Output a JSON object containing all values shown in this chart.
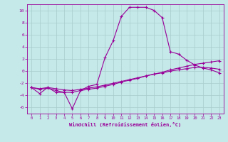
{
  "xlabel": "Windchill (Refroidissement éolien,°C)",
  "background_color": "#c5e8e8",
  "line_color": "#990099",
  "grid_color": "#a8cccc",
  "xlim": [
    -0.5,
    23.5
  ],
  "ylim": [
    -7,
    11
  ],
  "xticks": [
    0,
    1,
    2,
    3,
    4,
    5,
    6,
    7,
    8,
    9,
    10,
    11,
    12,
    13,
    14,
    15,
    16,
    17,
    18,
    19,
    20,
    21,
    22,
    23
  ],
  "yticks": [
    -6,
    -4,
    -2,
    0,
    2,
    4,
    6,
    8,
    10
  ],
  "line1_x": [
    0,
    1,
    2,
    3,
    4,
    5,
    6,
    7,
    8,
    9,
    10,
    11,
    12,
    13,
    14,
    15,
    16,
    17,
    18,
    19,
    20,
    21,
    22,
    23
  ],
  "line1_y": [
    -2.7,
    -3.7,
    -2.7,
    -3.5,
    -3.5,
    -6.2,
    -3.2,
    -2.5,
    -2.2,
    2.2,
    5.0,
    9.0,
    10.5,
    10.5,
    10.5,
    10.0,
    8.8,
    3.2,
    2.8,
    1.8,
    1.0,
    0.5,
    0.2,
    -0.3
  ],
  "line2_x": [
    0,
    1,
    2,
    3,
    4,
    5,
    6,
    7,
    8,
    9,
    10,
    11,
    12,
    13,
    14,
    15,
    16,
    17,
    18,
    19,
    20,
    21,
    22,
    23
  ],
  "line2_y": [
    -2.7,
    -2.9,
    -2.7,
    -2.9,
    -3.1,
    -3.2,
    -3.0,
    -2.8,
    -2.6,
    -2.3,
    -2.0,
    -1.7,
    -1.4,
    -1.1,
    -0.8,
    -0.5,
    -0.2,
    0.2,
    0.5,
    0.8,
    1.1,
    1.3,
    1.5,
    1.7
  ],
  "line3_x": [
    0,
    1,
    2,
    3,
    4,
    5,
    6,
    7,
    8,
    9,
    10,
    11,
    12,
    13,
    14,
    15,
    16,
    17,
    18,
    19,
    20,
    21,
    22,
    23
  ],
  "line3_y": [
    -2.7,
    -3.0,
    -2.8,
    -3.2,
    -3.5,
    -3.5,
    -3.2,
    -3.0,
    -2.8,
    -2.5,
    -2.2,
    -1.8,
    -1.5,
    -1.2,
    -0.8,
    -0.5,
    -0.3,
    0.0,
    0.2,
    0.4,
    0.6,
    0.6,
    0.5,
    0.3
  ]
}
